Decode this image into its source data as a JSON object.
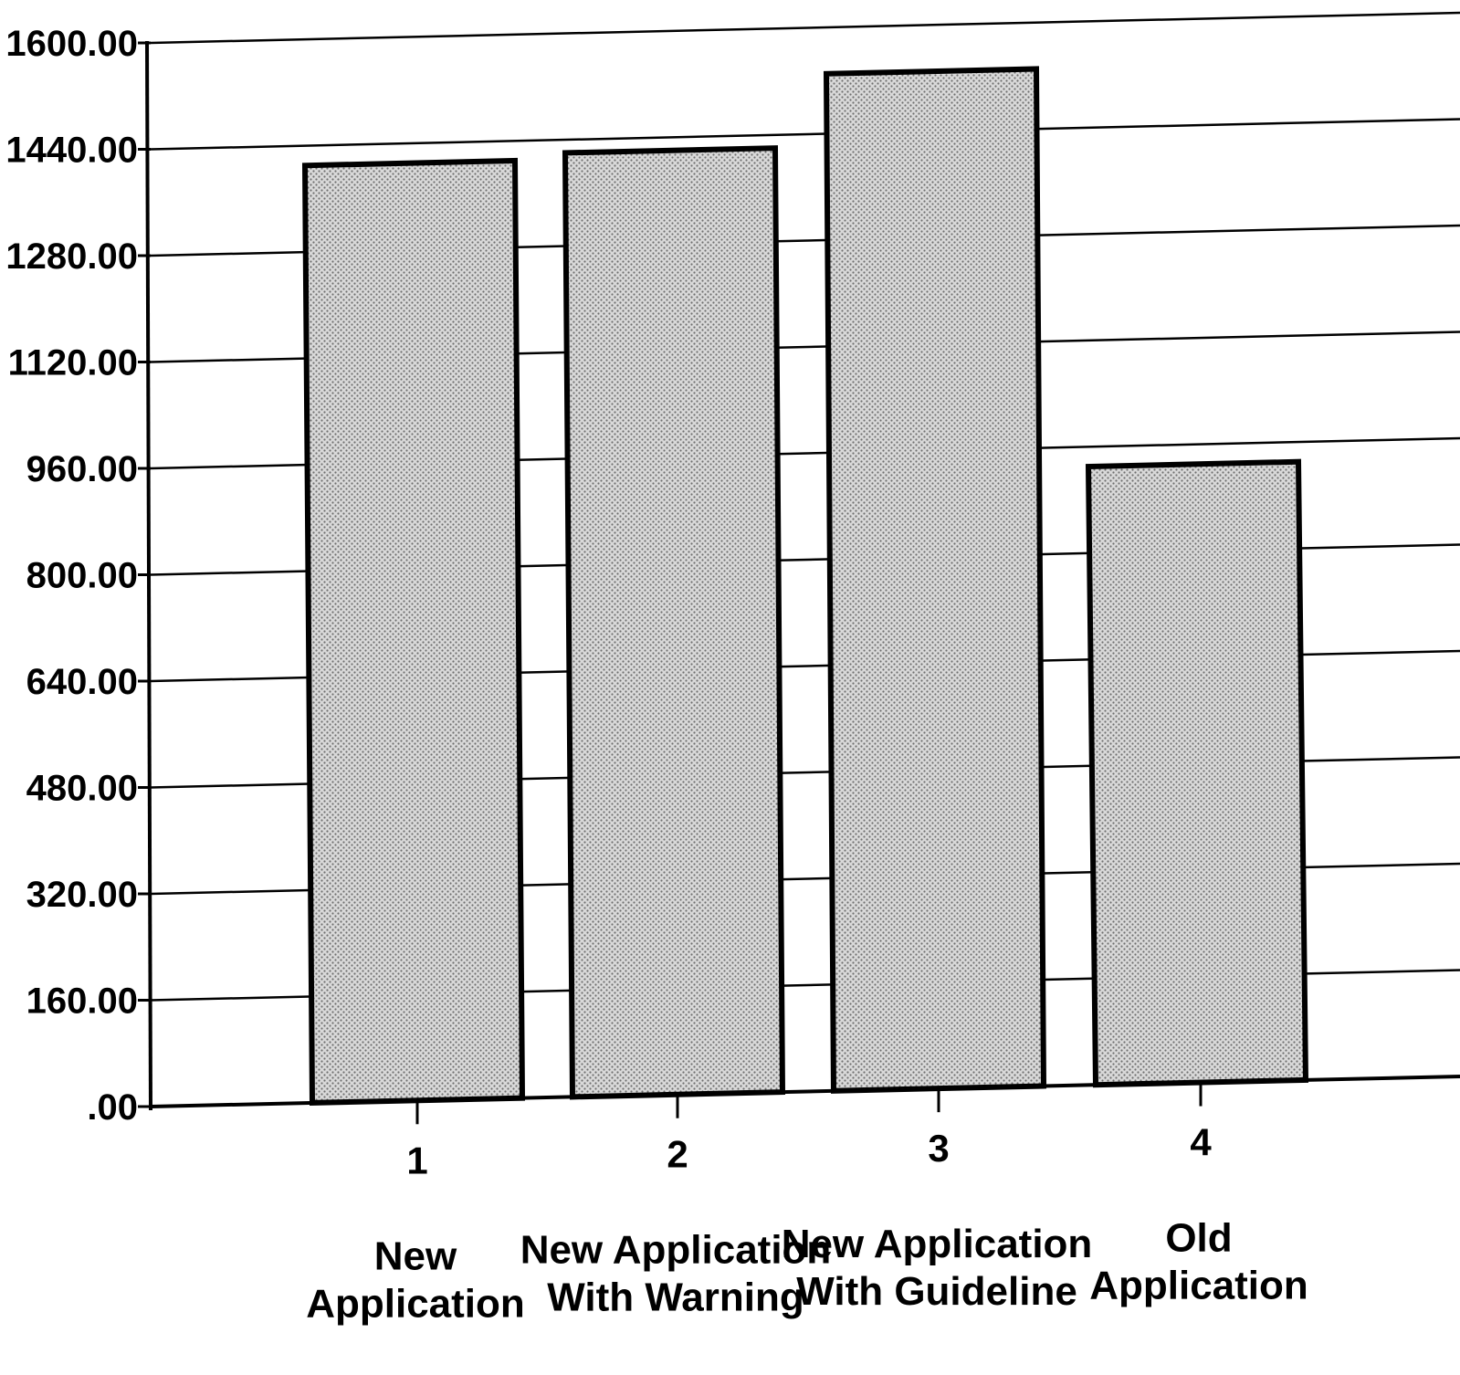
{
  "chart_data": {
    "type": "bar",
    "categories": [
      "1",
      "2",
      "3",
      "4"
    ],
    "category_labels": [
      [
        "New",
        "Application"
      ],
      [
        "New Application",
        "With Warning"
      ],
      [
        "New Application",
        "With Guideline"
      ],
      [
        "Old",
        "Application"
      ]
    ],
    "values": [
      1410,
      1420,
      1530,
      930
    ],
    "yticks": [
      ".00",
      "160.00",
      "320.00",
      "480.00",
      "640.00",
      "800.00",
      "960.00",
      "1120.00",
      "1280.00",
      "1440.00",
      "1600.00"
    ],
    "ylim": [
      0,
      1600
    ],
    "grid": true,
    "colors": {
      "bar_fill": "#bdbdbd",
      "bar_stroke": "#000000",
      "grid": "#000000"
    }
  }
}
